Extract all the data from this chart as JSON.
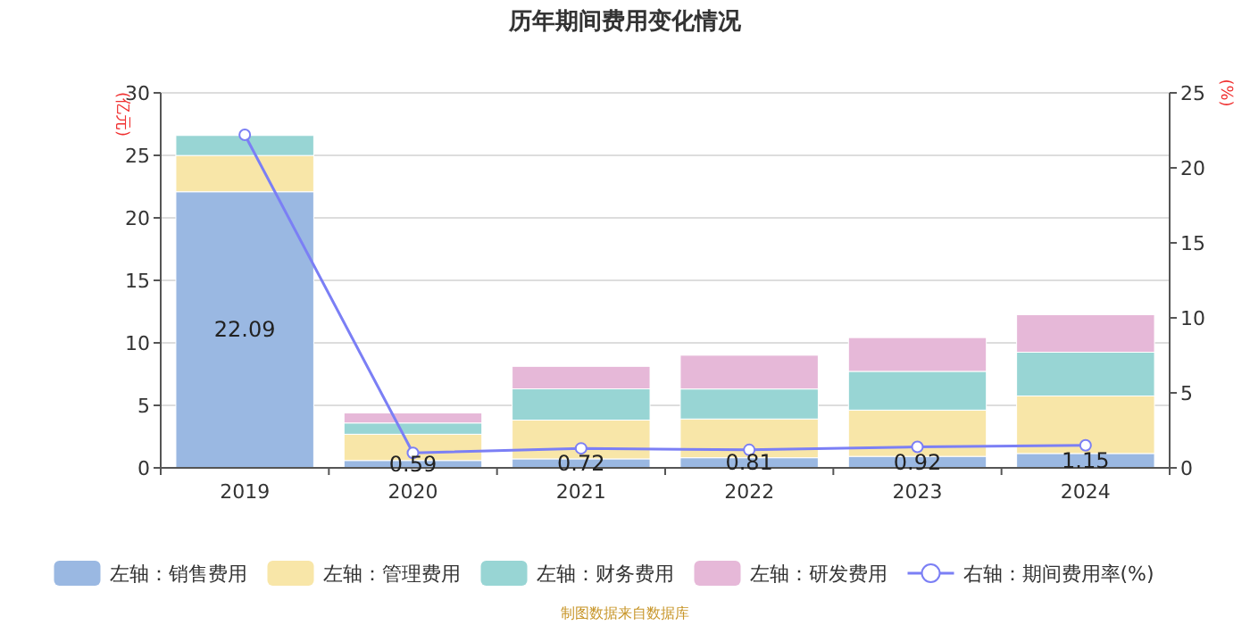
{
  "chart_data": {
    "type": "bar",
    "title": "历年期间费用变化情况",
    "ylabel": "(亿元)",
    "y2label": "(%)",
    "categories": [
      "2019",
      "2020",
      "2021",
      "2022",
      "2023",
      "2024"
    ],
    "stacked": true,
    "series": [
      {
        "name": "左轴：销售费用",
        "color": "#9ab8e2",
        "values": [
          22.09,
          0.59,
          0.72,
          0.81,
          0.92,
          1.15
        ],
        "value_labels": [
          "22.09",
          "0.59",
          "0.72",
          "0.81",
          "0.92",
          "1.15"
        ]
      },
      {
        "name": "左轴：管理费用",
        "color": "#f8e6a8",
        "values": [
          2.9,
          2.1,
          3.1,
          3.1,
          3.7,
          4.6
        ]
      },
      {
        "name": "左轴：财务费用",
        "color": "#98d5d4",
        "values": [
          1.6,
          0.9,
          2.5,
          2.4,
          3.1,
          3.5
        ]
      },
      {
        "name": "左轴：研发费用",
        "color": "#e6b8d8",
        "values": [
          null,
          0.8,
          1.8,
          2.7,
          2.7,
          3.0
        ]
      },
      {
        "name": "右轴：期间费用率(%)",
        "type": "line",
        "axis": "y2",
        "color": "#7b7ff5",
        "marker": "circle",
        "values": [
          22.2,
          1.0,
          1.3,
          1.2,
          1.4,
          1.5
        ]
      }
    ],
    "ylim": [
      0,
      30
    ],
    "yticks": [
      0,
      5,
      10,
      15,
      20,
      25,
      30
    ],
    "y2lim": [
      0,
      25
    ],
    "y2ticks": [
      0,
      5,
      10,
      15,
      20,
      25
    ],
    "grid": "y",
    "legend": "bottom",
    "annotations": [
      "制图数据来自数据库"
    ]
  }
}
